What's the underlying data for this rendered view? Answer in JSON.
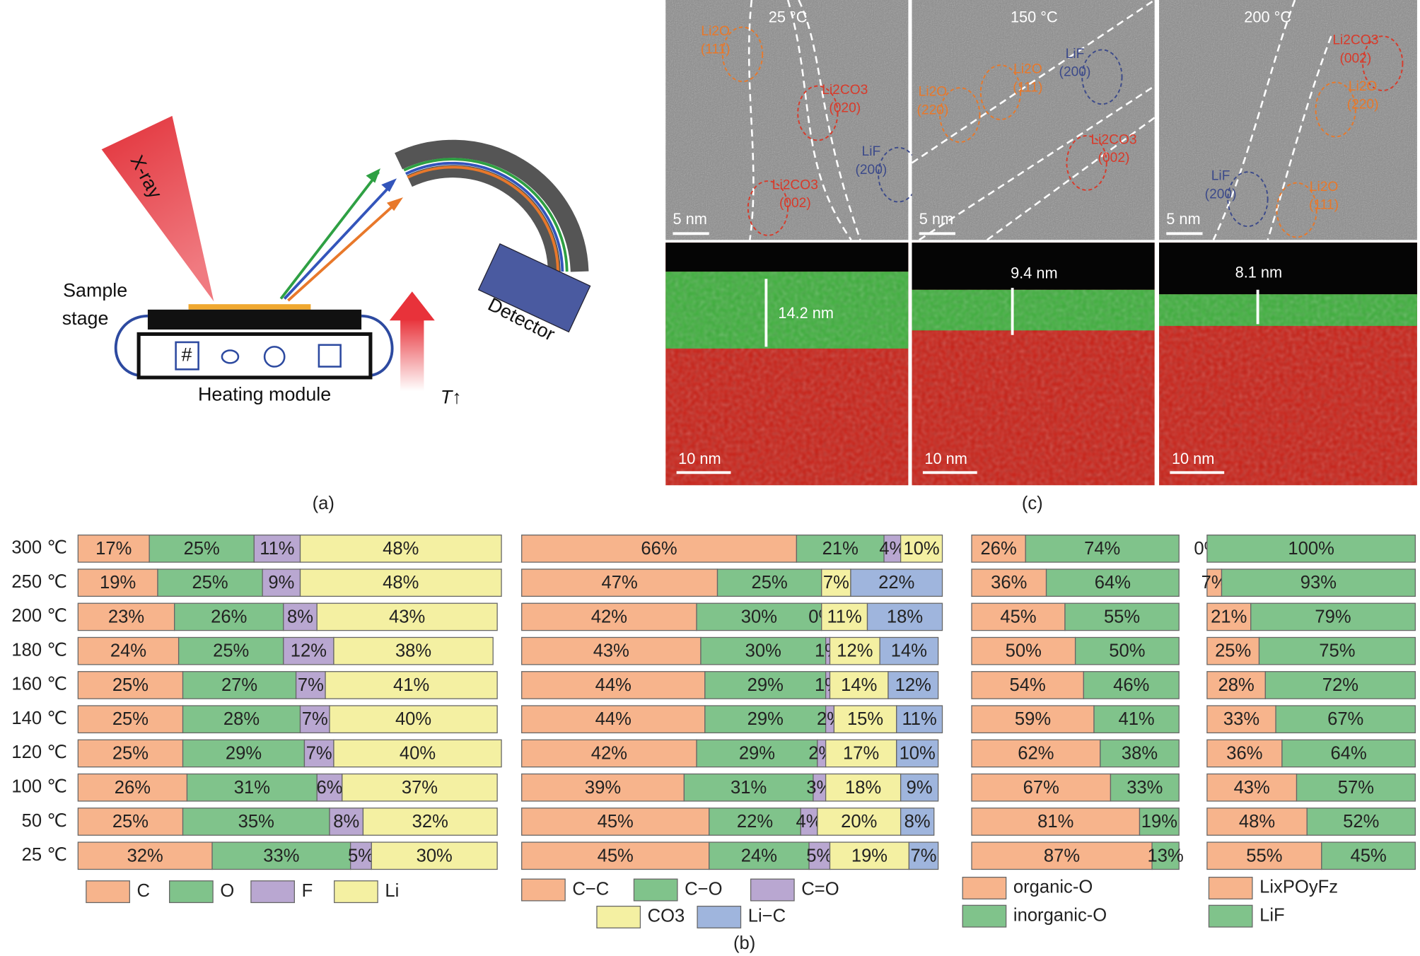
{
  "panel_labels": [
    "(a)",
    "(b)",
    "(c)"
  ],
  "diagram": {
    "xray": "X-ray",
    "sample_stage": [
      "Sample",
      "stage"
    ],
    "heating_module": "Heating module",
    "detector": "Detector",
    "slot": "#",
    "temperature": "T↑"
  },
  "micrographs": [
    {
      "temperature": "25 °C",
      "scale_top": "5 nm",
      "scale_bottom": "10 nm",
      "thickness": "14.2 nm",
      "phases": [
        {
          "label": "Li2O",
          "index": "(111)"
        },
        {
          "label": "Li2CO3",
          "index": "(020)"
        },
        {
          "label": "LiF",
          "index": "(200)"
        },
        {
          "label": "Li2CO3",
          "index": "(002)"
        }
      ]
    },
    {
      "temperature": "150 °C",
      "scale_top": "5 nm",
      "scale_bottom": "10 nm",
      "thickness": "9.4 nm",
      "phases": [
        {
          "label": "LiF",
          "index": "(200)"
        },
        {
          "label": "Li2O",
          "index": "(111)"
        },
        {
          "label": "Li2O",
          "index": "(220)"
        },
        {
          "label": "Li2CO3",
          "index": "(002)"
        }
      ]
    },
    {
      "temperature": "200 °C",
      "scale_top": "5 nm",
      "scale_bottom": "10 nm",
      "thickness": "8.1 nm",
      "phases": [
        {
          "label": "Li2CO3",
          "index": "(002)"
        },
        {
          "label": "Li2O",
          "index": "(220)"
        },
        {
          "label": "LiF",
          "index": "(200)"
        },
        {
          "label": "Li2O",
          "index": "(111)"
        }
      ]
    }
  ],
  "chart_data": [
    {
      "type": "bar",
      "orientation": "horizontal",
      "stacked": true,
      "xlim": [
        0,
        100
      ],
      "categories": [
        "300 ℃",
        "250 ℃",
        "200 ℃",
        "180 ℃",
        "160 ℃",
        "140 ℃",
        "120 ℃",
        "100 ℃",
        "50 ℃",
        "25 ℃"
      ],
      "series": [
        {
          "name": "C",
          "color": "#f7b48c",
          "values": [
            17,
            19,
            23,
            24,
            25,
            25,
            25,
            26,
            25,
            32
          ],
          "value_labels": [
            "17%",
            "19%",
            "23%",
            "24%",
            "25%",
            "25%",
            "25%",
            "26%",
            "25%",
            "32%"
          ]
        },
        {
          "name": "O",
          "color": "#80c38b",
          "values": [
            25,
            25,
            26,
            25,
            27,
            28,
            29,
            31,
            35,
            33
          ],
          "value_labels": [
            "25%",
            "25%",
            "26%",
            "25%",
            "27%",
            "28%",
            "29%",
            "31%",
            "35%",
            "33%"
          ]
        },
        {
          "name": "F",
          "color": "#b9a7d1",
          "values": [
            11,
            9,
            8,
            12,
            7,
            7,
            7,
            6,
            8,
            5
          ],
          "value_labels": [
            "11%",
            "9%",
            "8%",
            "12%",
            "7%",
            "7%",
            "7%",
            "6%",
            "8%",
            "5%"
          ]
        },
        {
          "name": "Li",
          "color": "#f4f0a2",
          "values": [
            48,
            48,
            43,
            38,
            41,
            40,
            40,
            37,
            32,
            30
          ],
          "value_labels": [
            "48%",
            "48%",
            "43%",
            "38%",
            "41%",
            "40%",
            "40%",
            "37%",
            "32%",
            "30%"
          ]
        }
      ]
    },
    {
      "type": "bar",
      "orientation": "horizontal",
      "stacked": true,
      "xlim": [
        0,
        100
      ],
      "series": [
        {
          "name": "C−C",
          "color": "#f7b48c",
          "values": [
            66,
            47,
            42,
            43,
            44,
            44,
            42,
            39,
            45,
            45
          ],
          "value_labels": [
            "66%",
            "47%",
            "42%",
            "43%",
            "44%",
            "44%",
            "42%",
            "39%",
            "45%",
            "45%"
          ]
        },
        {
          "name": "C−O",
          "color": "#80c38b",
          "values": [
            21,
            25,
            30,
            30,
            29,
            29,
            29,
            31,
            22,
            24
          ],
          "value_labels": [
            "21%",
            "25%",
            "30%",
            "30%",
            "29%",
            "29%",
            "29%",
            "31%",
            "22%",
            "24%"
          ]
        },
        {
          "name": "C=O",
          "color": "#b9a7d1",
          "values": [
            4,
            null,
            0,
            1,
            1,
            2,
            2,
            3,
            4,
            5
          ],
          "value_labels": [
            "4%",
            null,
            "0%",
            "1%",
            "1%",
            "2%",
            "2%",
            "3%",
            "4%",
            "5%"
          ]
        },
        {
          "name": "CO3",
          "color": "#f4f0a2",
          "values": [
            10,
            7,
            11,
            12,
            14,
            15,
            17,
            18,
            20,
            19
          ],
          "value_labels": [
            "10%",
            "7%",
            "11%",
            "12%",
            "14%",
            "15%",
            "17%",
            "18%",
            "20%",
            "19%"
          ]
        },
        {
          "name": "Li−C",
          "color": "#9fb5dd",
          "values": [
            null,
            22,
            18,
            14,
            12,
            11,
            10,
            9,
            8,
            7
          ],
          "value_labels": [
            null,
            "22%",
            "18%",
            "14%",
            "12%",
            "11%",
            "10%",
            "9%",
            "8%",
            "7%"
          ]
        }
      ]
    },
    {
      "type": "bar",
      "orientation": "horizontal",
      "stacked": true,
      "xlim": [
        0,
        100
      ],
      "series": [
        {
          "name": "organic-O",
          "color": "#f7b48c",
          "values": [
            26,
            36,
            45,
            50,
            54,
            59,
            62,
            67,
            81,
            87
          ],
          "value_labels": [
            "26%",
            "36%",
            "45%",
            "50%",
            "54%",
            "59%",
            "62%",
            "67%",
            "81%",
            "87%"
          ]
        },
        {
          "name": "inorganic-O",
          "color": "#80c38b",
          "values": [
            74,
            64,
            55,
            50,
            46,
            41,
            38,
            33,
            19,
            13
          ],
          "value_labels": [
            "74%",
            "64%",
            "55%",
            "50%",
            "46%",
            "41%",
            "38%",
            "33%",
            "19%",
            "13%"
          ]
        }
      ]
    },
    {
      "type": "bar",
      "orientation": "horizontal",
      "stacked": true,
      "xlim": [
        0,
        100
      ],
      "series": [
        {
          "name": "LixPOyFz",
          "color": "#f7b48c",
          "values": [
            0,
            7,
            21,
            25,
            28,
            33,
            36,
            43,
            48,
            55
          ],
          "value_labels": [
            "0%",
            "7%",
            "21%",
            "25%",
            "28%",
            "33%",
            "36%",
            "43%",
            "48%",
            "55%"
          ]
        },
        {
          "name": "LiF",
          "color": "#80c38b",
          "values": [
            100,
            93,
            79,
            75,
            72,
            67,
            64,
            57,
            52,
            45
          ],
          "value_labels": [
            "100%",
            "93%",
            "79%",
            "75%",
            "72%",
            "67%",
            "64%",
            "57%",
            "52%",
            "45%"
          ]
        }
      ]
    }
  ]
}
